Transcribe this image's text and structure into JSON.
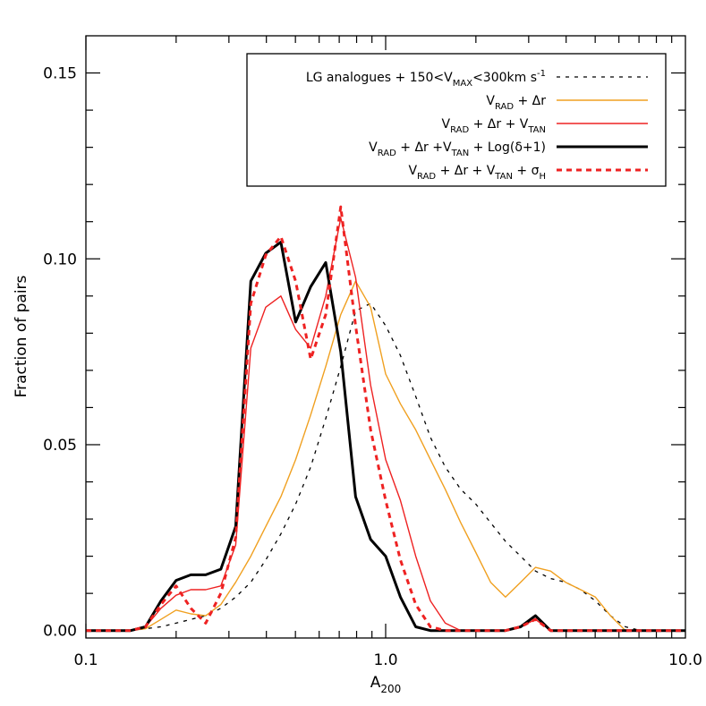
{
  "chart_data": {
    "type": "line",
    "xlabel": "A",
    "xlabel_sub": "200",
    "ylabel": "Fraction of pairs",
    "xscale": "log",
    "xlim": [
      0.1,
      10.0
    ],
    "ylim": [
      -0.002,
      0.16
    ],
    "x_ticks": [
      0.1,
      1.0,
      10.0
    ],
    "x_tick_labels": [
      "0.1",
      "1.0",
      "10.0"
    ],
    "y_ticks": [
      0.0,
      0.05,
      0.1,
      0.15
    ],
    "y_tick_labels": [
      "0.00",
      "0.05",
      "0.10",
      "0.15"
    ],
    "legend_position": "top-right",
    "series": [
      {
        "legend": [
          {
            "t": "LG analogues + 150<V"
          },
          {
            "t": "MAX",
            "sub": true
          },
          {
            "t": "<300km s"
          },
          {
            "t": "-1",
            "sup": true
          }
        ],
        "color": "#000000",
        "width": 1.3,
        "dash": "4,6",
        "x": [
          0.1,
          0.141,
          0.158,
          0.178,
          0.2,
          0.224,
          0.251,
          0.282,
          0.316,
          0.355,
          0.398,
          0.447,
          0.501,
          0.562,
          0.631,
          0.708,
          0.794,
          0.891,
          1.0,
          1.12,
          1.26,
          1.41,
          1.58,
          1.78,
          2.0,
          2.24,
          2.51,
          2.82,
          3.16,
          3.55,
          3.98,
          4.47,
          5.01,
          5.62,
          6.31,
          7.08,
          10.0
        ],
        "y": [
          0.0,
          0.0,
          0.0005,
          0.001,
          0.002,
          0.003,
          0.004,
          0.006,
          0.009,
          0.013,
          0.019,
          0.026,
          0.034,
          0.044,
          0.057,
          0.071,
          0.086,
          0.088,
          0.082,
          0.074,
          0.063,
          0.052,
          0.044,
          0.038,
          0.034,
          0.029,
          0.024,
          0.02,
          0.016,
          0.014,
          0.013,
          0.011,
          0.008,
          0.004,
          0.001,
          0.0,
          0.0
        ]
      },
      {
        "legend": [
          {
            "t": "V"
          },
          {
            "t": "RAD",
            "sub": true
          },
          {
            "t": " + Δr"
          }
        ],
        "color": "#f0a020",
        "width": 1.4,
        "dash": "",
        "x": [
          0.1,
          0.141,
          0.158,
          0.178,
          0.2,
          0.224,
          0.251,
          0.282,
          0.316,
          0.355,
          0.398,
          0.447,
          0.501,
          0.562,
          0.631,
          0.708,
          0.794,
          0.891,
          1.0,
          1.12,
          1.26,
          1.41,
          1.58,
          1.78,
          2.0,
          2.24,
          2.51,
          2.82,
          3.16,
          3.55,
          3.98,
          4.47,
          5.01,
          5.62,
          6.31,
          7.08,
          10.0
        ],
        "y": [
          0.0,
          0.0,
          0.0005,
          0.003,
          0.0055,
          0.0045,
          0.004,
          0.007,
          0.013,
          0.02,
          0.028,
          0.036,
          0.046,
          0.058,
          0.071,
          0.085,
          0.094,
          0.087,
          0.069,
          0.061,
          0.054,
          0.046,
          0.038,
          0.029,
          0.021,
          0.013,
          0.009,
          0.013,
          0.017,
          0.016,
          0.013,
          0.011,
          0.009,
          0.004,
          0.0,
          0.0,
          0.0
        ]
      },
      {
        "legend": [
          {
            "t": "V"
          },
          {
            "t": "RAD",
            "sub": true
          },
          {
            "t": " + Δr + V"
          },
          {
            "t": "TAN",
            "sub": true
          }
        ],
        "color": "#ee2222",
        "width": 1.4,
        "dash": "",
        "x": [
          0.1,
          0.141,
          0.158,
          0.178,
          0.2,
          0.224,
          0.251,
          0.282,
          0.316,
          0.355,
          0.398,
          0.447,
          0.501,
          0.562,
          0.631,
          0.708,
          0.794,
          0.891,
          1.0,
          1.12,
          1.26,
          1.41,
          1.58,
          1.78,
          2.0,
          2.24,
          2.51,
          2.82,
          3.16,
          3.55,
          3.98,
          10.0
        ],
        "y": [
          0.0,
          0.0,
          0.001,
          0.006,
          0.0095,
          0.011,
          0.011,
          0.012,
          0.023,
          0.076,
          0.087,
          0.09,
          0.081,
          0.076,
          0.09,
          0.111,
          0.095,
          0.066,
          0.046,
          0.035,
          0.02,
          0.008,
          0.002,
          0.0,
          0.0,
          0.0,
          0.0,
          0.001,
          0.003,
          0.0,
          0.0,
          0.0
        ]
      },
      {
        "legend": [
          {
            "t": "V"
          },
          {
            "t": "RAD",
            "sub": true
          },
          {
            "t": " + Δr +V"
          },
          {
            "t": "TAN",
            "sub": true
          },
          {
            "t": " + Log(δ+1)"
          }
        ],
        "color": "#000000",
        "width": 3,
        "dash": "",
        "x": [
          0.1,
          0.141,
          0.158,
          0.178,
          0.2,
          0.224,
          0.251,
          0.282,
          0.316,
          0.355,
          0.398,
          0.447,
          0.501,
          0.562,
          0.631,
          0.708,
          0.794,
          0.891,
          1.0,
          1.12,
          1.26,
          1.41,
          1.58,
          1.78,
          2.0,
          2.24,
          2.51,
          2.82,
          3.16,
          3.55,
          3.98,
          10.0
        ],
        "y": [
          0.0,
          0.0,
          0.001,
          0.008,
          0.0135,
          0.015,
          0.015,
          0.0165,
          0.028,
          0.094,
          0.1015,
          0.1045,
          0.083,
          0.0925,
          0.099,
          0.075,
          0.036,
          0.0245,
          0.02,
          0.009,
          0.001,
          0.0,
          0.0,
          0.0,
          0.0,
          0.0,
          0.0,
          0.001,
          0.004,
          0.0,
          0.0,
          0.0
        ]
      },
      {
        "legend": [
          {
            "t": "V"
          },
          {
            "t": "RAD",
            "sub": true
          },
          {
            "t": " + Δr + V"
          },
          {
            "t": "TAN",
            "sub": true
          },
          {
            "t": " + σ"
          },
          {
            "t": "H",
            "sub": true
          }
        ],
        "color": "#ee2222",
        "width": 3,
        "dash": "6,5",
        "x": [
          0.1,
          0.141,
          0.158,
          0.178,
          0.2,
          0.224,
          0.251,
          0.282,
          0.316,
          0.355,
          0.398,
          0.447,
          0.501,
          0.562,
          0.631,
          0.708,
          0.794,
          0.891,
          1.0,
          1.12,
          1.26,
          1.41,
          1.58,
          1.78,
          2.0,
          2.24,
          2.51,
          2.82,
          3.16,
          3.55,
          3.98,
          10.0
        ],
        "y": [
          0.0,
          0.0,
          0.001,
          0.007,
          0.012,
          0.006,
          0.002,
          0.01,
          0.025,
          0.088,
          0.101,
          0.106,
          0.094,
          0.073,
          0.085,
          0.114,
          0.082,
          0.054,
          0.035,
          0.019,
          0.007,
          0.001,
          0.0,
          0.0,
          0.0,
          0.0,
          0.0,
          0.001,
          0.003,
          0.0,
          0.0,
          0.0
        ]
      }
    ]
  }
}
